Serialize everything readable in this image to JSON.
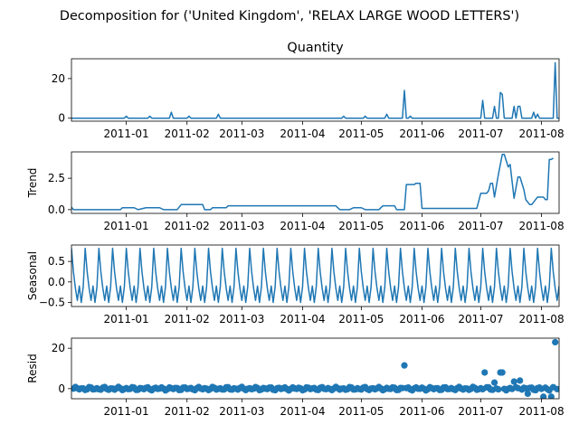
{
  "figure": {
    "suptitle": "Decomposition for ('United Kingdom', 'RELAX LARGE WOOD LETTERS')",
    "line_color": "#1f77b4"
  },
  "chart_data": [
    {
      "type": "line",
      "title": "Quantity",
      "ylabel": "",
      "ylim": [
        -1.5,
        30
      ],
      "yticks": [
        0,
        20
      ],
      "xlim": [
        "2010-12-04",
        "2011-08-10"
      ],
      "xticks": [
        "2011-01-01",
        "2011-02-01",
        "2011-03-01",
        "2011-04-01",
        "2011-05-01",
        "2011-06-01",
        "2011-07-01",
        "2011-08-01"
      ],
      "xticklabels": [
        "2011-01",
        "2011-02",
        "2011-03",
        "2011-04",
        "2011-05",
        "2011-06",
        "2011-07",
        "2011-08"
      ],
      "baseline": 0,
      "points": [
        [
          "2011-01-01",
          1
        ],
        [
          "2011-01-13",
          1
        ],
        [
          "2011-01-24",
          3
        ],
        [
          "2011-02-02",
          1
        ],
        [
          "2011-02-17",
          2
        ],
        [
          "2011-04-22",
          1
        ],
        [
          "2011-05-03",
          1
        ],
        [
          "2011-05-14",
          2
        ],
        [
          "2011-05-23",
          14
        ],
        [
          "2011-05-26",
          1
        ],
        [
          "2011-07-02",
          9
        ],
        [
          "2011-07-08",
          6
        ],
        [
          "2011-07-11",
          13
        ],
        [
          "2011-07-12",
          12
        ],
        [
          "2011-07-18",
          6
        ],
        [
          "2011-07-20",
          6
        ],
        [
          "2011-07-21",
          6
        ],
        [
          "2011-07-28",
          3
        ],
        [
          "2011-07-30",
          2
        ],
        [
          "2011-08-08",
          28
        ]
      ]
    },
    {
      "type": "line",
      "title": "",
      "ylabel": "Trend",
      "ylim": [
        -0.3,
        4.6
      ],
      "yticks": [
        0.0,
        2.5
      ],
      "yticklabels": [
        "0.0",
        "2.5"
      ],
      "xlim": [
        "2010-12-04",
        "2011-08-10"
      ],
      "xticks": [
        "2011-01-01",
        "2011-02-01",
        "2011-03-01",
        "2011-04-01",
        "2011-05-01",
        "2011-06-01",
        "2011-07-01",
        "2011-08-01"
      ],
      "xticklabels": [
        "2011-01",
        "2011-02",
        "2011-03",
        "2011-04",
        "2011-05",
        "2011-06",
        "2011-07",
        "2011-08"
      ],
      "x": [
        "2010-12-04",
        "2010-12-05",
        "2010-12-29",
        "2010-12-30",
        "2011-01-05",
        "2011-01-07",
        "2011-01-11",
        "2011-01-18",
        "2011-01-20",
        "2011-01-27",
        "2011-01-29",
        "2011-02-09",
        "2011-02-10",
        "2011-02-13",
        "2011-02-14",
        "2011-02-21",
        "2011-02-22",
        "2011-04-18",
        "2011-04-20",
        "2011-04-25",
        "2011-04-27",
        "2011-05-01",
        "2011-05-03",
        "2011-05-10",
        "2011-05-12",
        "2011-05-18",
        "2011-05-19",
        "2011-05-23",
        "2011-05-24",
        "2011-05-28",
        "2011-05-29",
        "2011-05-31",
        "2011-06-01",
        "2011-06-29",
        "2011-07-01",
        "2011-07-04",
        "2011-07-05",
        "2011-07-06",
        "2011-07-07",
        "2011-07-08",
        "2011-07-10",
        "2011-07-12",
        "2011-07-13",
        "2011-07-15",
        "2011-07-16",
        "2011-07-18",
        "2011-07-20",
        "2011-07-21",
        "2011-07-23",
        "2011-07-24",
        "2011-07-26",
        "2011-07-27",
        "2011-07-30",
        "2011-08-02",
        "2011-08-03",
        "2011-08-04",
        "2011-08-05",
        "2011-08-06",
        "2011-08-07"
      ],
      "y": [
        0.2,
        0.0,
        0.0,
        0.15,
        0.15,
        0.0,
        0.15,
        0.15,
        0.0,
        0.0,
        0.4,
        0.4,
        0.0,
        0.0,
        0.15,
        0.15,
        0.3,
        0.3,
        0.0,
        0.0,
        0.15,
        0.15,
        0.0,
        0.0,
        0.3,
        0.3,
        0.0,
        0.0,
        2.0,
        2.0,
        2.1,
        2.1,
        0.1,
        0.1,
        1.3,
        1.3,
        1.5,
        2.1,
        2.1,
        1.0,
        2.8,
        4.4,
        4.4,
        3.4,
        3.6,
        0.9,
        2.6,
        2.6,
        1.6,
        0.8,
        0.4,
        0.4,
        1.0,
        1.0,
        0.8,
        0.8,
        4.0,
        4.0,
        4.1
      ]
    },
    {
      "type": "line",
      "title": "",
      "ylabel": "Seasonal",
      "ylim": [
        -0.6,
        0.9
      ],
      "yticks": [
        -0.5,
        0.0,
        0.5
      ],
      "yticklabels": [
        "−0.5",
        "0.0",
        "0.5"
      ],
      "xlim": [
        "2010-12-04",
        "2011-08-10"
      ],
      "xticks": [
        "2011-01-01",
        "2011-02-01",
        "2011-03-01",
        "2011-04-01",
        "2011-05-01",
        "2011-06-01",
        "2011-07-01",
        "2011-08-01"
      ],
      "xticklabels": [
        "2011-01",
        "2011-02",
        "2011-03",
        "2011-04",
        "2011-05",
        "2011-06",
        "2011-07",
        "2011-08"
      ],
      "period": 7,
      "pattern": [
        0.82,
        0.25,
        -0.15,
        -0.45,
        -0.1,
        -0.5,
        -0.12
      ]
    },
    {
      "type": "scatter",
      "title": "",
      "ylabel": "Resid",
      "ylim": [
        -5,
        25
      ],
      "yticks": [
        0,
        20
      ],
      "xlim": [
        "2010-12-04",
        "2011-08-10"
      ],
      "xticks": [
        "2011-01-01",
        "2011-02-01",
        "2011-03-01",
        "2011-04-01",
        "2011-05-01",
        "2011-06-01",
        "2011-07-01",
        "2011-08-01"
      ],
      "xticklabels": [
        "2011-01",
        "2011-02",
        "2011-03",
        "2011-04",
        "2011-05",
        "2011-06",
        "2011-07",
        "2011-08"
      ],
      "zero_line": 0,
      "outliers": [
        [
          "2011-05-23",
          11.5
        ],
        [
          "2011-07-03",
          8
        ],
        [
          "2011-07-08",
          3
        ],
        [
          "2011-07-11",
          8
        ],
        [
          "2011-07-12",
          8
        ],
        [
          "2011-07-18",
          3.5
        ],
        [
          "2011-07-21",
          4
        ],
        [
          "2011-07-25",
          -2.5
        ],
        [
          "2011-08-02",
          -4
        ],
        [
          "2011-08-06",
          -4
        ],
        [
          "2011-08-08",
          23
        ]
      ]
    }
  ]
}
